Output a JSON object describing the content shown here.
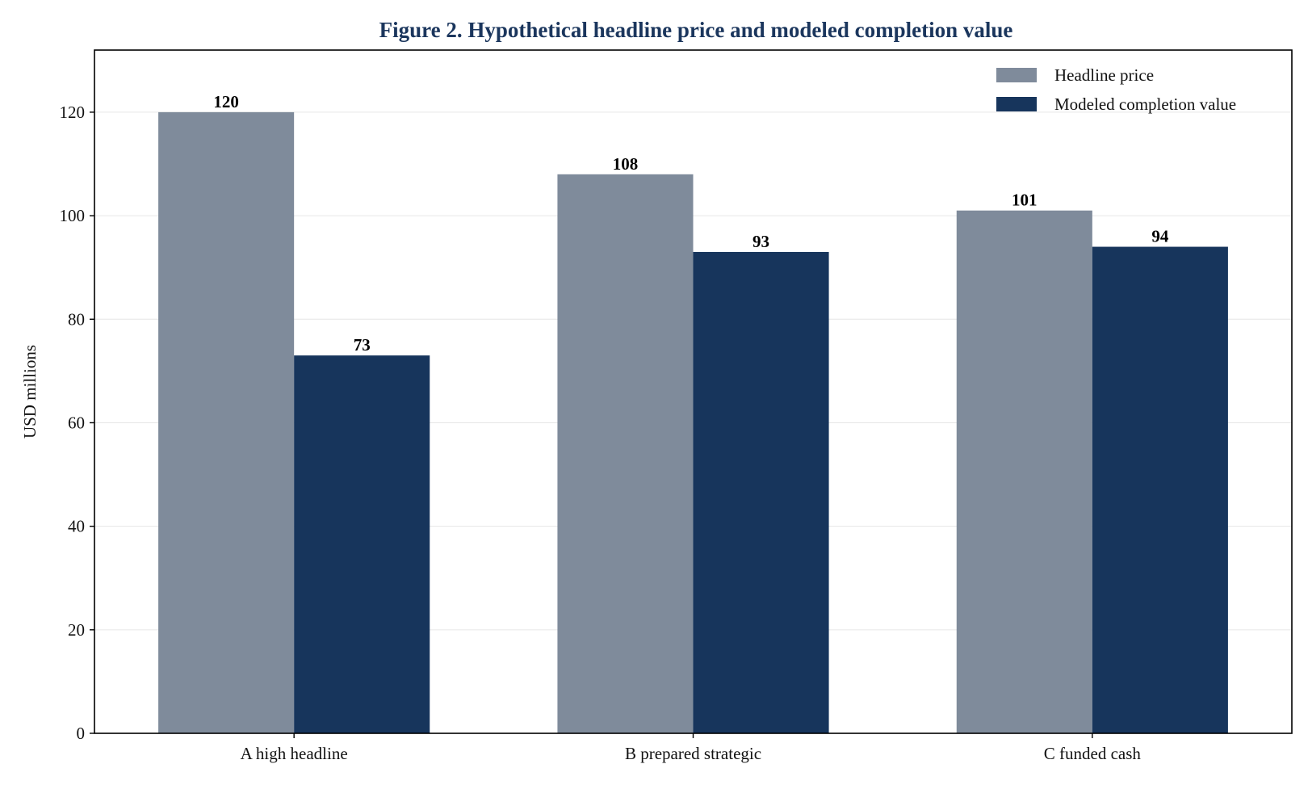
{
  "chart_data": {
    "type": "bar",
    "title": "Figure 2. Hypothetical headline price and modeled completion value",
    "xlabel": "",
    "ylabel": "USD millions",
    "categories": [
      "A high headline",
      "B prepared strategic",
      "C funded cash"
    ],
    "series": [
      {
        "name": "Headline price",
        "values": [
          120,
          108,
          101
        ],
        "color": "#7f8b9b"
      },
      {
        "name": "Modeled completion value",
        "values": [
          73,
          93,
          94
        ],
        "color": "#17355c"
      }
    ],
    "ylim": [
      0,
      132
    ],
    "yticks": [
      0,
      20,
      40,
      60,
      80,
      100,
      120
    ],
    "grid": true,
    "legend_position": "top-right",
    "data_labels": true
  }
}
